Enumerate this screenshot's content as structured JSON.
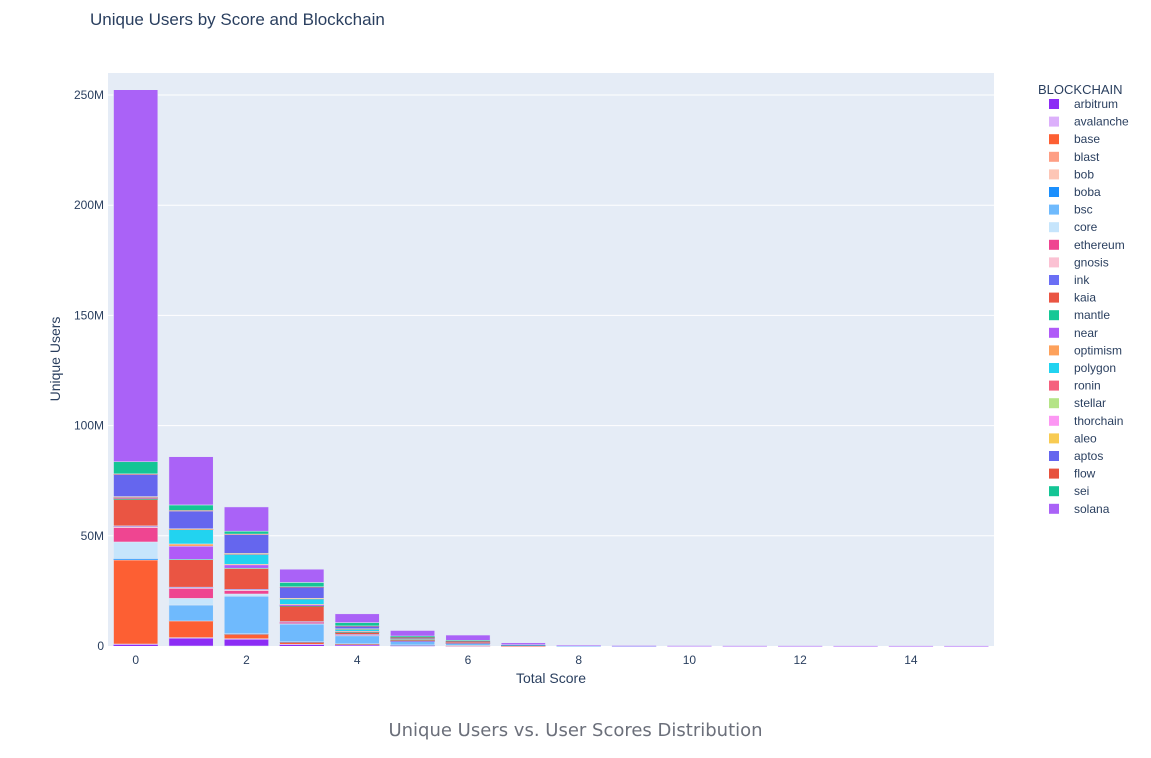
{
  "caption": "Unique Users vs. User Scores Distribution",
  "chart_data": {
    "type": "bar",
    "barmode": "stack",
    "title": "Unique Users by Score and Blockchain",
    "xlabel": "Total Score",
    "ylabel": "Unique Users",
    "legend_title": "BLOCKCHAIN",
    "legend_position": "right",
    "xlim": [
      -0.5,
      15.5
    ],
    "ylim": [
      0,
      260000000
    ],
    "xticks": [
      0,
      2,
      4,
      6,
      8,
      10,
      12,
      14
    ],
    "yticks": [
      0,
      50000000,
      100000000,
      150000000,
      200000000,
      250000000
    ],
    "ytick_labels": [
      "0",
      "50M",
      "100M",
      "150M",
      "200M",
      "250M"
    ],
    "grid": true,
    "categories": [
      0,
      1,
      2,
      3,
      4,
      5,
      6,
      7,
      8,
      9,
      10,
      11,
      12,
      13,
      14,
      15
    ],
    "series": [
      {
        "name": "arbitrum",
        "color": "#8c2cf5",
        "values": [
          600000,
          3500000,
          3000000,
          600000,
          400000,
          200000,
          100000,
          50000,
          0,
          0,
          0,
          0,
          0,
          0,
          0,
          0
        ]
      },
      {
        "name": "avalanche",
        "color": "#dcb0fb",
        "values": [
          300000,
          300000,
          300000,
          200000,
          100000,
          50000,
          20000,
          10000,
          0,
          0,
          0,
          0,
          0,
          0,
          0,
          0
        ]
      },
      {
        "name": "base",
        "color": "#fd5f33",
        "values": [
          38000000,
          7500000,
          2000000,
          900000,
          500000,
          200000,
          100000,
          20000,
          0,
          0,
          0,
          0,
          0,
          0,
          0,
          0
        ]
      },
      {
        "name": "blast",
        "color": "#fe9e84",
        "values": [
          200000,
          100000,
          100000,
          100000,
          50000,
          20000,
          10000,
          0,
          0,
          0,
          0,
          0,
          0,
          0,
          0,
          0
        ]
      },
      {
        "name": "bob",
        "color": "#fdc6b6",
        "values": [
          100000,
          100000,
          100000,
          50000,
          20000,
          10000,
          0,
          0,
          0,
          0,
          0,
          0,
          0,
          0,
          0,
          0
        ]
      },
      {
        "name": "boba",
        "color": "#1b8ffd",
        "values": [
          100000,
          100000,
          100000,
          50000,
          20000,
          10000,
          0,
          0,
          0,
          0,
          0,
          0,
          0,
          0,
          0,
          0
        ]
      },
      {
        "name": "bsc",
        "color": "#6fbafd",
        "values": [
          400000,
          7000000,
          17000000,
          8000000,
          3500000,
          1500000,
          900000,
          200000,
          50000,
          10000,
          0,
          0,
          0,
          0,
          0,
          0
        ]
      },
      {
        "name": "core",
        "color": "#c6e5fc",
        "values": [
          7500000,
          3000000,
          1000000,
          300000,
          200000,
          100000,
          50000,
          0,
          0,
          0,
          0,
          0,
          0,
          0,
          0,
          0
        ]
      },
      {
        "name": "ethereum",
        "color": "#ef4591",
        "values": [
          6500000,
          4500000,
          1500000,
          600000,
          300000,
          100000,
          50000,
          10000,
          0,
          0,
          0,
          0,
          0,
          0,
          0,
          0
        ]
      },
      {
        "name": "gnosis",
        "color": "#fbc1d3",
        "values": [
          500000,
          300000,
          300000,
          100000,
          50000,
          20000,
          10000,
          0,
          0,
          0,
          0,
          0,
          0,
          0,
          0,
          0
        ]
      },
      {
        "name": "ink",
        "color": "#6b6ff5",
        "values": [
          300000,
          300000,
          300000,
          200000,
          100000,
          50000,
          20000,
          0,
          0,
          0,
          0,
          0,
          0,
          0,
          0,
          0
        ]
      },
      {
        "name": "kaia",
        "color": "#ea5543",
        "values": [
          12000000,
          12500000,
          9500000,
          7000000,
          1000000,
          400000,
          200000,
          50000,
          0,
          0,
          0,
          0,
          0,
          0,
          0,
          0
        ]
      },
      {
        "name": "mantle",
        "color": "#17c896",
        "values": [
          200000,
          100000,
          100000,
          100000,
          50000,
          20000,
          10000,
          0,
          0,
          0,
          0,
          0,
          0,
          0,
          0,
          0
        ]
      },
      {
        "name": "near",
        "color": "#b05bf8",
        "values": [
          300000,
          6000000,
          1500000,
          500000,
          300000,
          100000,
          50000,
          10000,
          0,
          0,
          0,
          0,
          0,
          0,
          0,
          0
        ]
      },
      {
        "name": "optimism",
        "color": "#fda15b",
        "values": [
          200000,
          1000000,
          300000,
          200000,
          100000,
          50000,
          20000,
          0,
          0,
          0,
          0,
          0,
          0,
          0,
          0,
          0
        ]
      },
      {
        "name": "polygon",
        "color": "#22d3f0",
        "values": [
          200000,
          6500000,
          4500000,
          2500000,
          1000000,
          500000,
          300000,
          50000,
          0,
          0,
          0,
          0,
          0,
          0,
          0,
          0
        ]
      },
      {
        "name": "ronin",
        "color": "#f5607e",
        "values": [
          100000,
          100000,
          100000,
          100000,
          50000,
          20000,
          10000,
          0,
          0,
          0,
          0,
          0,
          0,
          0,
          0,
          0
        ]
      },
      {
        "name": "stellar",
        "color": "#b5e487",
        "values": [
          100000,
          100000,
          100000,
          50000,
          20000,
          10000,
          0,
          0,
          0,
          0,
          0,
          0,
          0,
          0,
          0,
          0
        ]
      },
      {
        "name": "thorchain",
        "color": "#fc97f3",
        "values": [
          100000,
          100000,
          100000,
          50000,
          20000,
          10000,
          0,
          0,
          0,
          0,
          0,
          0,
          0,
          0,
          0,
          0
        ]
      },
      {
        "name": "aleo",
        "color": "#f8cb52",
        "values": [
          100000,
          100000,
          100000,
          50000,
          20000,
          10000,
          0,
          0,
          0,
          0,
          0,
          0,
          0,
          0,
          0,
          0
        ]
      },
      {
        "name": "aptos",
        "color": "#6566ee",
        "values": [
          10000000,
          8000000,
          8500000,
          5000000,
          1200000,
          500000,
          300000,
          50000,
          0,
          0,
          0,
          0,
          0,
          0,
          0,
          0
        ]
      },
      {
        "name": "flow",
        "color": "#e7523d",
        "values": [
          300000,
          300000,
          300000,
          200000,
          100000,
          50000,
          20000,
          0,
          0,
          0,
          0,
          0,
          0,
          0,
          0,
          0
        ]
      },
      {
        "name": "sei",
        "color": "#14c595",
        "values": [
          5500000,
          2500000,
          1300000,
          2000000,
          1500000,
          600000,
          400000,
          100000,
          0,
          0,
          0,
          0,
          0,
          0,
          0,
          0
        ]
      },
      {
        "name": "solana",
        "color": "#aa62f7",
        "values": [
          168800000,
          21900000,
          11000000,
          6000000,
          4000000,
          2500000,
          2400000,
          900000,
          200000,
          100000,
          80000,
          60000,
          50000,
          40000,
          40000,
          30000
        ]
      }
    ]
  }
}
